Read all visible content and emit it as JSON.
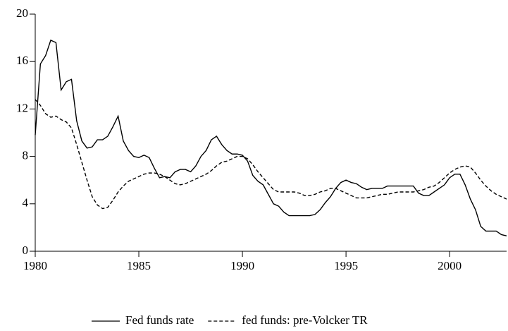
{
  "chart_data": {
    "type": "line",
    "x": [
      1980,
      1980.25,
      1980.5,
      1980.75,
      1981,
      1981.25,
      1981.5,
      1981.75,
      1982,
      1982.25,
      1982.5,
      1982.75,
      1983,
      1983.25,
      1983.5,
      1983.75,
      1984,
      1984.25,
      1984.5,
      1984.75,
      1985,
      1985.25,
      1985.5,
      1985.75,
      1986,
      1986.25,
      1986.5,
      1986.75,
      1987,
      1987.25,
      1987.5,
      1987.75,
      1988,
      1988.25,
      1988.5,
      1988.75,
      1989,
      1989.25,
      1989.5,
      1989.75,
      1990,
      1990.25,
      1990.5,
      1990.75,
      1991,
      1991.25,
      1991.5,
      1991.75,
      1992,
      1992.25,
      1992.5,
      1992.75,
      1993,
      1993.25,
      1993.5,
      1993.75,
      1994,
      1994.25,
      1994.5,
      1994.75,
      1995,
      1995.25,
      1995.5,
      1995.75,
      1996,
      1996.25,
      1996.5,
      1996.75,
      1997,
      1997.25,
      1997.5,
      1997.75,
      1998,
      1998.25,
      1998.5,
      1998.75,
      1999,
      1999.25,
      1999.5,
      1999.75,
      2000,
      2000.25,
      2000.5,
      2000.75,
      2001,
      2001.25,
      2001.5,
      2001.75,
      2002,
      2002.25,
      2002.5,
      2002.75
    ],
    "series": [
      {
        "name": "Fed funds rate",
        "color": "#000000",
        "dash": "solid",
        "values": [
          9.8,
          15.8,
          16.5,
          17.8,
          17.6,
          13.6,
          14.3,
          14.5,
          11.0,
          9.3,
          8.7,
          8.8,
          9.4,
          9.4,
          9.7,
          10.5,
          11.4,
          9.3,
          8.5,
          8.0,
          7.9,
          8.1,
          7.9,
          7.0,
          6.2,
          6.3,
          6.2,
          6.7,
          6.9,
          6.9,
          6.7,
          7.2,
          8.0,
          8.5,
          9.4,
          9.7,
          9.0,
          8.5,
          8.2,
          8.2,
          8.1,
          7.6,
          6.4,
          5.9,
          5.6,
          4.8,
          4.0,
          3.8,
          3.3,
          3.0,
          3.0,
          3.0,
          3.0,
          3.0,
          3.1,
          3.5,
          4.1,
          4.6,
          5.3,
          5.8,
          6.0,
          5.8,
          5.7,
          5.4,
          5.2,
          5.3,
          5.3,
          5.3,
          5.5,
          5.5,
          5.5,
          5.5,
          5.5,
          5.5,
          4.9,
          4.7,
          4.7,
          5.0,
          5.3,
          5.6,
          6.2,
          6.5,
          6.5,
          5.6,
          4.4,
          3.5,
          2.1,
          1.7,
          1.7,
          1.7,
          1.4,
          1.3
        ]
      },
      {
        "name": "fed funds: pre-Volcker TR",
        "color": "#000000",
        "dash": "dashed",
        "values": [
          12.8,
          12.3,
          11.6,
          11.3,
          11.4,
          11.1,
          10.9,
          10.4,
          9.0,
          7.5,
          6.0,
          4.6,
          3.9,
          3.6,
          3.7,
          4.3,
          5.0,
          5.5,
          5.9,
          6.1,
          6.3,
          6.5,
          6.6,
          6.6,
          6.5,
          6.3,
          6.0,
          5.7,
          5.6,
          5.7,
          5.9,
          6.1,
          6.3,
          6.5,
          6.8,
          7.2,
          7.5,
          7.6,
          7.8,
          8.0,
          8.0,
          7.8,
          7.3,
          6.7,
          6.2,
          5.7,
          5.2,
          5.0,
          5.0,
          5.0,
          5.0,
          4.9,
          4.7,
          4.7,
          4.8,
          5.0,
          5.1,
          5.3,
          5.3,
          5.1,
          4.9,
          4.7,
          4.5,
          4.5,
          4.5,
          4.6,
          4.7,
          4.8,
          4.8,
          4.9,
          5.0,
          5.0,
          5.0,
          5.0,
          5.1,
          5.2,
          5.4,
          5.5,
          5.8,
          6.2,
          6.6,
          6.9,
          7.1,
          7.2,
          7.1,
          6.6,
          6.0,
          5.5,
          5.1,
          4.8,
          4.6,
          4.4
        ]
      }
    ],
    "xlim": [
      1980,
      2002.75
    ],
    "xticks": [
      1980,
      1985,
      1990,
      1995,
      2000
    ],
    "ylim": [
      0,
      20
    ],
    "yticks": [
      0,
      4,
      8,
      12,
      16,
      20
    ],
    "grid": false,
    "legend": "bottom"
  }
}
